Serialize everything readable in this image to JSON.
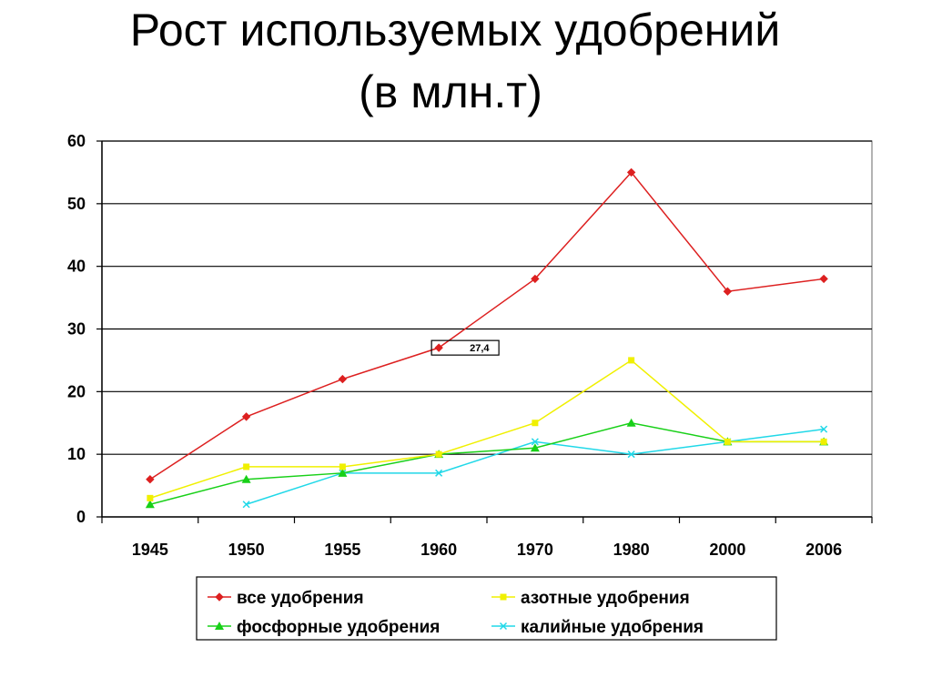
{
  "chart_data": {
    "type": "line",
    "title_line1": "Рост используемых удобрений",
    "title_line2": "(в млн.т)",
    "categories": [
      "1945",
      "1950",
      "1955",
      "1960",
      "1970",
      "1980",
      "2000",
      "2006"
    ],
    "ylim": [
      0,
      60
    ],
    "yticks": [
      "0",
      "10",
      "20",
      "30",
      "40",
      "50",
      "60"
    ],
    "ytick_values": [
      0,
      10,
      20,
      30,
      40,
      50,
      60
    ],
    "grid": true,
    "legend_position": "bottom",
    "series": [
      {
        "name": "все удобрения",
        "color": "#dd2020",
        "marker": "diamond",
        "values": [
          6,
          16,
          22,
          27,
          38,
          55,
          36,
          38
        ]
      },
      {
        "name": "азотные удобрения",
        "color": "#f0f000",
        "marker": "square",
        "values": [
          3,
          8,
          8,
          10,
          15,
          25,
          12,
          12
        ]
      },
      {
        "name": "фосфорные удобрения",
        "color": "#18d018",
        "marker": "triangle",
        "values": [
          2,
          6,
          7,
          10,
          11,
          15,
          12,
          12
        ]
      },
      {
        "name": "калийные удобрения",
        "color": "#20d8e8",
        "marker": "x",
        "values": [
          null,
          2,
          7,
          7,
          12,
          10,
          12,
          14
        ]
      }
    ],
    "annotations": [
      {
        "series": 0,
        "index": 3,
        "text": "27,4"
      }
    ]
  }
}
